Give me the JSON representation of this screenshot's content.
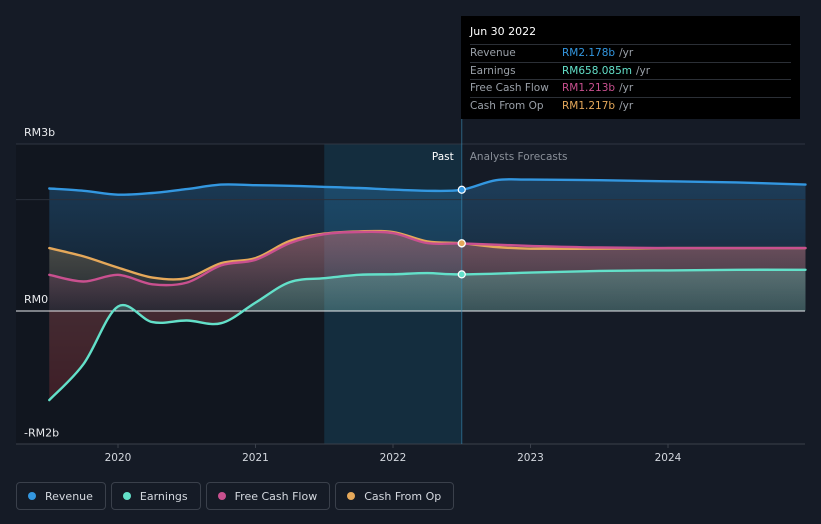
{
  "chart_data": {
    "type": "area",
    "y_unit": "RM b",
    "ylim": [
      -2.0,
      3.0
    ],
    "y_tick_labels": [
      {
        "value": 3.0,
        "label": "RM3b"
      },
      {
        "value": 0.0,
        "label": "RM0"
      },
      {
        "value": -2.0,
        "label": "-RM2b"
      }
    ],
    "x_ticks": [
      {
        "value": 2020,
        "label": "2020"
      },
      {
        "value": 2021,
        "label": "2021"
      },
      {
        "value": 2022,
        "label": "2022"
      },
      {
        "value": 2023,
        "label": "2023"
      },
      {
        "value": 2024,
        "label": "2024"
      }
    ],
    "xlim": [
      2019.0,
      2025.0
    ],
    "highlight_start": 2021.5,
    "past_end": 2022.5,
    "past_label": "Past",
    "forecast_label": "Analysts Forecasts",
    "series": [
      {
        "name": "Revenue",
        "color": "#3397e0",
        "points": [
          [
            2019.5,
            2.2
          ],
          [
            2019.75,
            2.16
          ],
          [
            2020.0,
            2.09
          ],
          [
            2020.25,
            2.12
          ],
          [
            2020.5,
            2.19
          ],
          [
            2020.75,
            2.27
          ],
          [
            2021.0,
            2.26
          ],
          [
            2021.25,
            2.25
          ],
          [
            2021.5,
            2.23
          ],
          [
            2021.75,
            2.21
          ],
          [
            2022.0,
            2.18
          ],
          [
            2022.25,
            2.16
          ],
          [
            2022.5,
            2.178
          ],
          [
            2022.75,
            2.35
          ],
          [
            2023.0,
            2.36
          ],
          [
            2023.5,
            2.35
          ],
          [
            2024.0,
            2.33
          ],
          [
            2024.5,
            2.31
          ],
          [
            2025.0,
            2.27
          ]
        ]
      },
      {
        "name": "Earnings",
        "color": "#63e0c9",
        "points": [
          [
            2019.5,
            -1.6
          ],
          [
            2019.75,
            -0.95
          ],
          [
            2020.0,
            0.08
          ],
          [
            2020.25,
            -0.2
          ],
          [
            2020.5,
            -0.17
          ],
          [
            2020.75,
            -0.22
          ],
          [
            2021.0,
            0.15
          ],
          [
            2021.25,
            0.52
          ],
          [
            2021.5,
            0.59
          ],
          [
            2021.75,
            0.65
          ],
          [
            2022.0,
            0.66
          ],
          [
            2022.25,
            0.68
          ],
          [
            2022.5,
            0.658
          ],
          [
            2023.0,
            0.69
          ],
          [
            2023.5,
            0.72
          ],
          [
            2024.0,
            0.73
          ],
          [
            2024.5,
            0.74
          ],
          [
            2025.0,
            0.74
          ]
        ]
      },
      {
        "name": "Free Cash Flow",
        "color": "#c9508f",
        "points": [
          [
            2019.5,
            0.65
          ],
          [
            2019.75,
            0.53
          ],
          [
            2020.0,
            0.65
          ],
          [
            2020.25,
            0.48
          ],
          [
            2020.5,
            0.51
          ],
          [
            2020.75,
            0.82
          ],
          [
            2021.0,
            0.92
          ],
          [
            2021.25,
            1.22
          ],
          [
            2021.5,
            1.38
          ],
          [
            2021.75,
            1.42
          ],
          [
            2022.0,
            1.4
          ],
          [
            2022.25,
            1.22
          ],
          [
            2022.5,
            1.213
          ],
          [
            2023.0,
            1.17
          ],
          [
            2023.5,
            1.14
          ],
          [
            2024.0,
            1.13
          ],
          [
            2024.5,
            1.13
          ],
          [
            2025.0,
            1.13
          ]
        ]
      },
      {
        "name": "Cash From Op",
        "color": "#e5a85a",
        "points": [
          [
            2019.5,
            1.13
          ],
          [
            2019.75,
            0.98
          ],
          [
            2020.0,
            0.78
          ],
          [
            2020.25,
            0.6
          ],
          [
            2020.5,
            0.59
          ],
          [
            2020.75,
            0.86
          ],
          [
            2021.0,
            0.95
          ],
          [
            2021.25,
            1.26
          ],
          [
            2021.5,
            1.39
          ],
          [
            2021.75,
            1.43
          ],
          [
            2022.0,
            1.42
          ],
          [
            2022.25,
            1.25
          ],
          [
            2022.5,
            1.217
          ],
          [
            2022.75,
            1.15
          ],
          [
            2023.0,
            1.12
          ],
          [
            2023.5,
            1.12
          ],
          [
            2024.0,
            1.13
          ],
          [
            2024.5,
            1.13
          ],
          [
            2025.0,
            1.13
          ]
        ]
      }
    ]
  },
  "tooltip": {
    "date": "Jun 30 2022",
    "rows": [
      {
        "label": "Revenue",
        "value": "RM2.178b",
        "unit": "/yr",
        "color": "#3397e0"
      },
      {
        "label": "Earnings",
        "value": "RM658.085m",
        "unit": "/yr",
        "color": "#63e0c9"
      },
      {
        "label": "Free Cash Flow",
        "value": "RM1.213b",
        "unit": "/yr",
        "color": "#c9508f"
      },
      {
        "label": "Cash From Op",
        "value": "RM1.217b",
        "unit": "/yr",
        "color": "#e5a85a"
      }
    ]
  },
  "legend": [
    {
      "label": "Revenue",
      "color": "#3397e0"
    },
    {
      "label": "Earnings",
      "color": "#63e0c9"
    },
    {
      "label": "Free Cash Flow",
      "color": "#c9508f"
    },
    {
      "label": "Cash From Op",
      "color": "#e5a85a"
    }
  ]
}
